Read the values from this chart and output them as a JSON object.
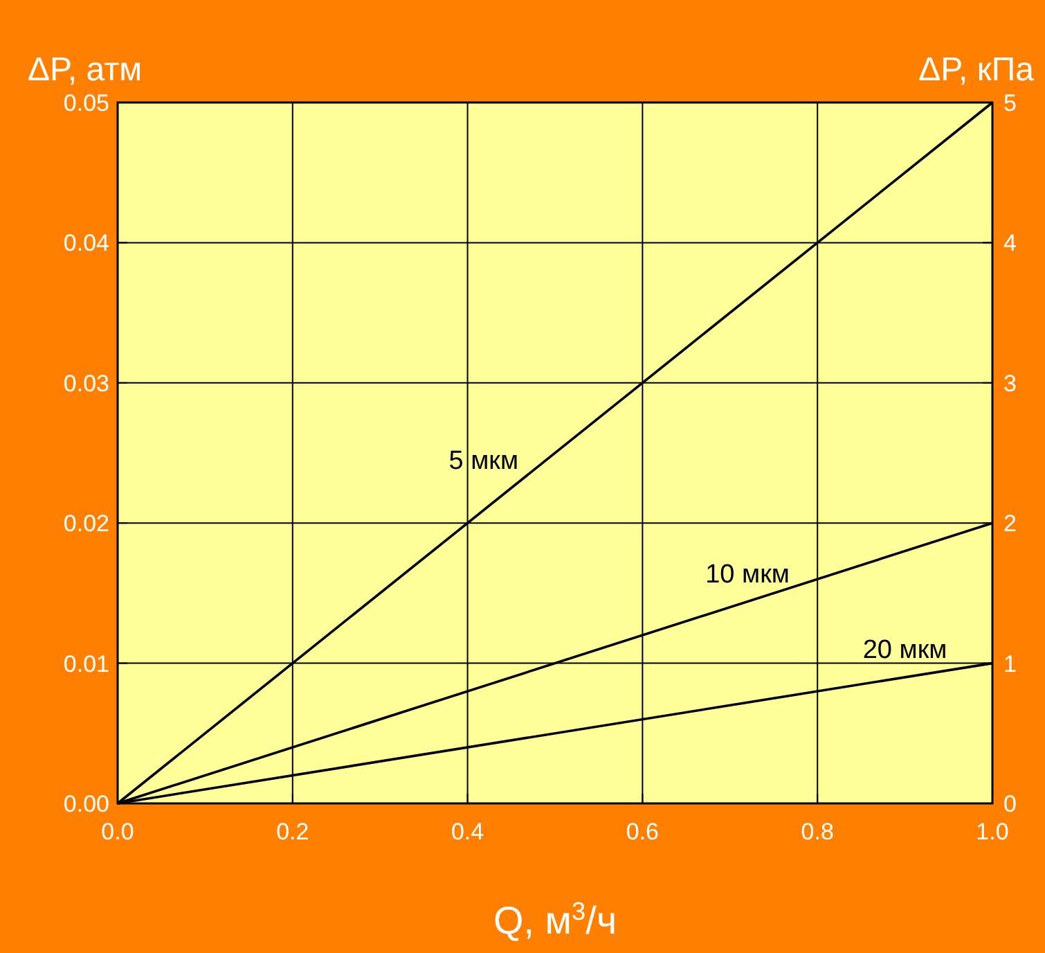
{
  "chart_data": {
    "type": "line",
    "xlabel": "Q, м$^{3}$/ч",
    "ylabel": "ΔP, атм",
    "y2label": "ΔP, кПа",
    "x": [
      0,
      1
    ],
    "series": [
      {
        "name": "5 мкм",
        "color": "#000000",
        "values": [
          0,
          0.05
        ]
      },
      {
        "name": "10 мкм",
        "color": "#000000",
        "values": [
          0,
          0.02
        ]
      },
      {
        "name": "20 мкм",
        "color": "#000000",
        "values": [
          0,
          0.01
        ]
      }
    ],
    "xlim": [
      0,
      1
    ],
    "xticks": [
      {
        "value": 0,
        "label": "0.0"
      },
      {
        "value": 0.2,
        "label": "0.2"
      },
      {
        "value": 0.4,
        "label": "0.4"
      },
      {
        "value": 0.6,
        "label": "0.6"
      },
      {
        "value": 0.8,
        "label": "0.8"
      },
      {
        "value": 1,
        "label": "1.0"
      }
    ],
    "ylim": [
      0,
      0.05
    ],
    "yticks": [
      {
        "value": 0,
        "label": "0.00"
      },
      {
        "value": 0.01,
        "label": "0.01"
      },
      {
        "value": 0.02,
        "label": "0.02"
      },
      {
        "value": 0.03,
        "label": "0.03"
      },
      {
        "value": 0.04,
        "label": "0.04"
      },
      {
        "value": 0.05,
        "label": "0.05"
      }
    ],
    "y2lim": [
      0,
      5
    ],
    "y2ticks": [
      0,
      1,
      2,
      3,
      4,
      5
    ],
    "grid": true,
    "marker": "none",
    "line_style": "solid"
  }
}
